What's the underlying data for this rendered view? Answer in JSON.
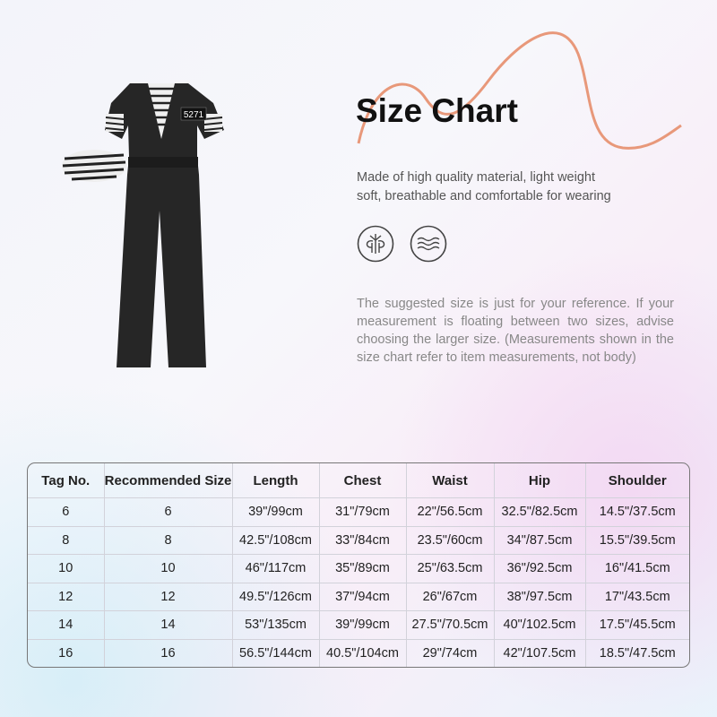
{
  "title": "Size Chart",
  "description": [
    "Made of high quality material, light weight",
    "soft, breathable and comfortable for wearing"
  ],
  "features": [
    {
      "icon": "breathable-icon"
    },
    {
      "icon": "soft-wave-icon"
    }
  ],
  "note": "The suggested size is just for your reference. If your measurement is floating between two sizes, advise choosing the larger size. (Measurements shown in the size chart refer to item measurements, not body)",
  "product": {
    "badge_number": "5271"
  },
  "colors": {
    "accent_curve": "#e8987a",
    "text": "#111111"
  },
  "table": {
    "headers": [
      "Tag No.",
      "Recommended Size",
      "Length",
      "Chest",
      "Waist",
      "Hip",
      "Shoulder"
    ],
    "rows": [
      [
        "6",
        "6",
        "39\"/99cm",
        "31\"/79cm",
        "22\"/56.5cm",
        "32.5\"/82.5cm",
        "14.5\"/37.5cm"
      ],
      [
        "8",
        "8",
        "42.5\"/108cm",
        "33\"/84cm",
        "23.5\"/60cm",
        "34\"/87.5cm",
        "15.5\"/39.5cm"
      ],
      [
        "10",
        "10",
        "46\"/117cm",
        "35\"/89cm",
        "25\"/63.5cm",
        "36\"/92.5cm",
        "16\"/41.5cm"
      ],
      [
        "12",
        "12",
        "49.5\"/126cm",
        "37\"/94cm",
        "26\"/67cm",
        "38\"/97.5cm",
        "17\"/43.5cm"
      ],
      [
        "14",
        "14",
        "53\"/135cm",
        "39\"/99cm",
        "27.5\"/70.5cm",
        "40\"/102.5cm",
        "17.5\"/45.5cm"
      ],
      [
        "16",
        "16",
        "56.5\"/144cm",
        "40.5\"/104cm",
        "29\"/74cm",
        "42\"/107.5cm",
        "18.5\"/47.5cm"
      ]
    ]
  }
}
